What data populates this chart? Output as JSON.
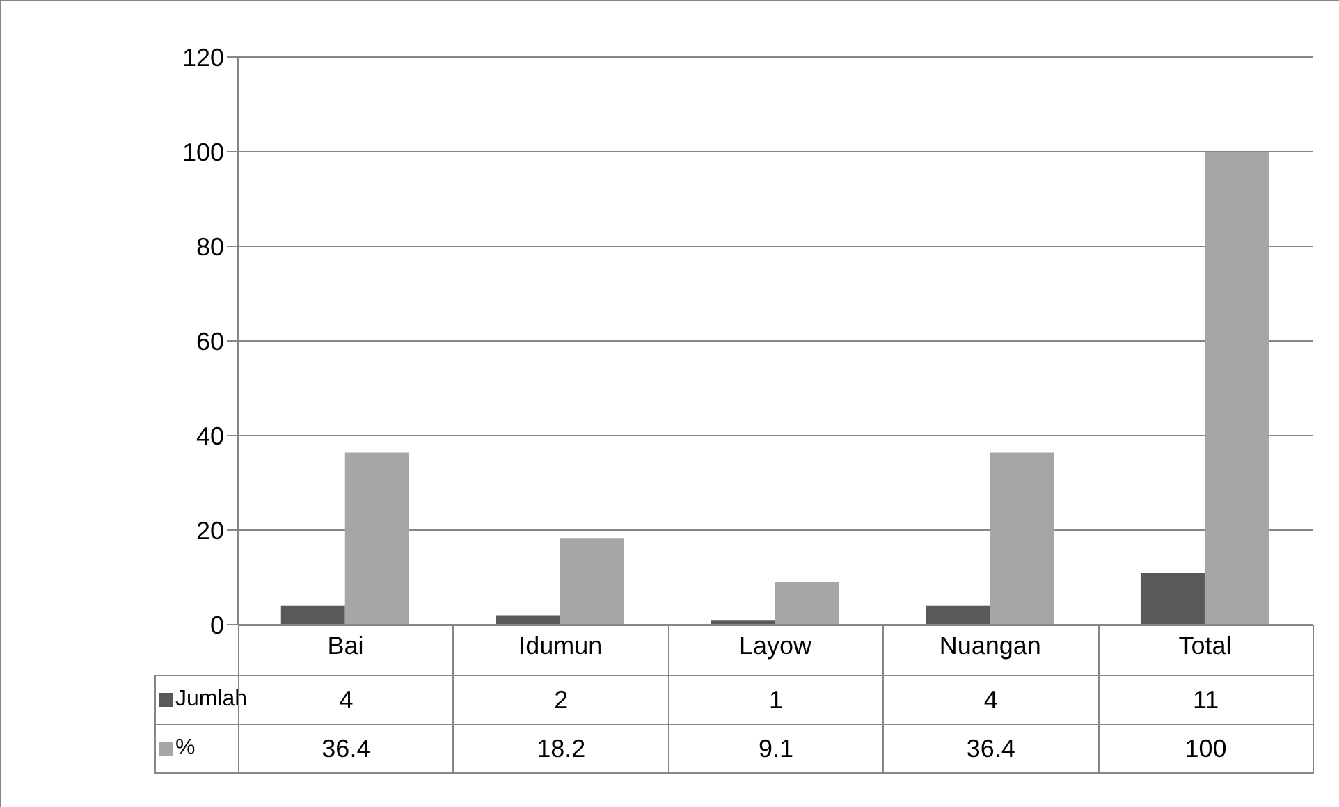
{
  "chart_data": {
    "type": "bar",
    "categories": [
      "Bai",
      "Idumun",
      "Layow",
      "Nuangan",
      "Total"
    ],
    "series": [
      {
        "name": "Jumlah",
        "color": "#595959",
        "values": [
          4,
          2,
          1,
          4,
          11
        ]
      },
      {
        "name": "%",
        "color": "#a6a6a6",
        "values": [
          36.4,
          18.2,
          9.1,
          36.4,
          100
        ]
      }
    ],
    "ylim": [
      0,
      120
    ],
    "yticks": [
      0,
      20,
      40,
      60,
      80,
      100,
      120
    ],
    "grid": "y",
    "legend": "bottom left",
    "data_labels": true
  }
}
